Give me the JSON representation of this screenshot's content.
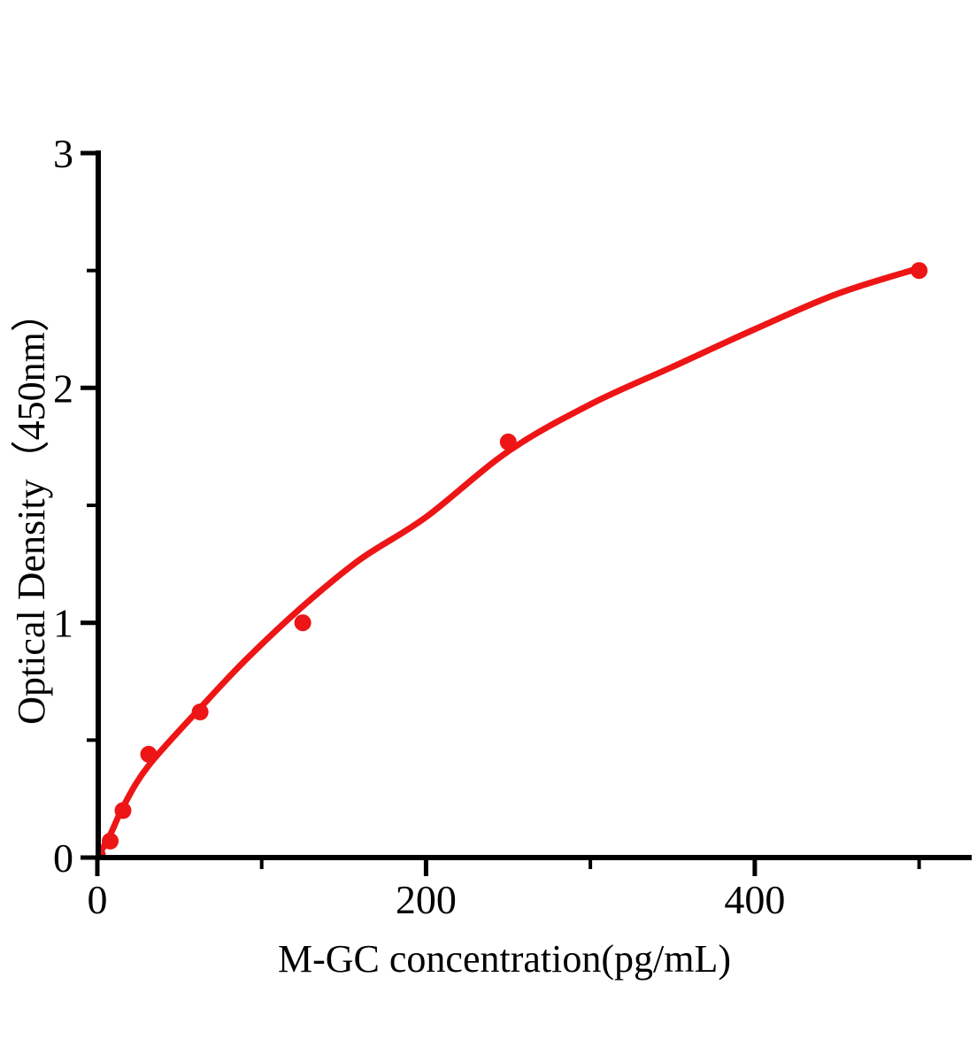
{
  "figure": {
    "background": "#ffffff",
    "title": ""
  },
  "chart_data": {
    "type": "scatter",
    "subtype": "standard-curve-with-fit-line",
    "title": "",
    "xlabel": "M-GC concentration(pg/mL)",
    "ylabel": "Optical Density（450nm）",
    "xlim": [
      0,
      532
    ],
    "ylim": [
      0,
      3
    ],
    "grid": false,
    "legend": null,
    "axis_color": "#000000",
    "series_color": "#ed1515",
    "marker_radius": 9.5,
    "curve_width": 7,
    "x_ticks_major": [
      {
        "value": 0,
        "label": "0"
      },
      {
        "value": 200,
        "label": "200"
      },
      {
        "value": 400,
        "label": "400"
      }
    ],
    "x_ticks_minor": [
      100,
      300,
      500
    ],
    "y_ticks_major": [
      {
        "value": 0,
        "label": "0"
      },
      {
        "value": 1,
        "label": "1"
      },
      {
        "value": 2,
        "label": "2"
      },
      {
        "value": 3,
        "label": "3"
      }
    ],
    "y_ticks_minor": [
      0.5,
      1.5,
      2.5
    ],
    "points": [
      {
        "x": 0,
        "y": 0.01
      },
      {
        "x": 7.8,
        "y": 0.07
      },
      {
        "x": 15.6,
        "y": 0.2
      },
      {
        "x": 31.25,
        "y": 0.44
      },
      {
        "x": 62.5,
        "y": 0.62
      },
      {
        "x": 125,
        "y": 1.0
      },
      {
        "x": 250,
        "y": 1.77
      },
      {
        "x": 500,
        "y": 2.5
      }
    ],
    "fit_curve": [
      [
        0,
        0.0
      ],
      [
        8,
        0.1
      ],
      [
        16,
        0.22
      ],
      [
        31,
        0.39
      ],
      [
        63,
        0.64
      ],
      [
        90,
        0.84
      ],
      [
        125,
        1.07
      ],
      [
        160,
        1.27
      ],
      [
        200,
        1.45
      ],
      [
        250,
        1.73
      ],
      [
        300,
        1.93
      ],
      [
        350,
        2.09
      ],
      [
        400,
        2.25
      ],
      [
        450,
        2.4
      ],
      [
        500,
        2.51
      ]
    ]
  }
}
